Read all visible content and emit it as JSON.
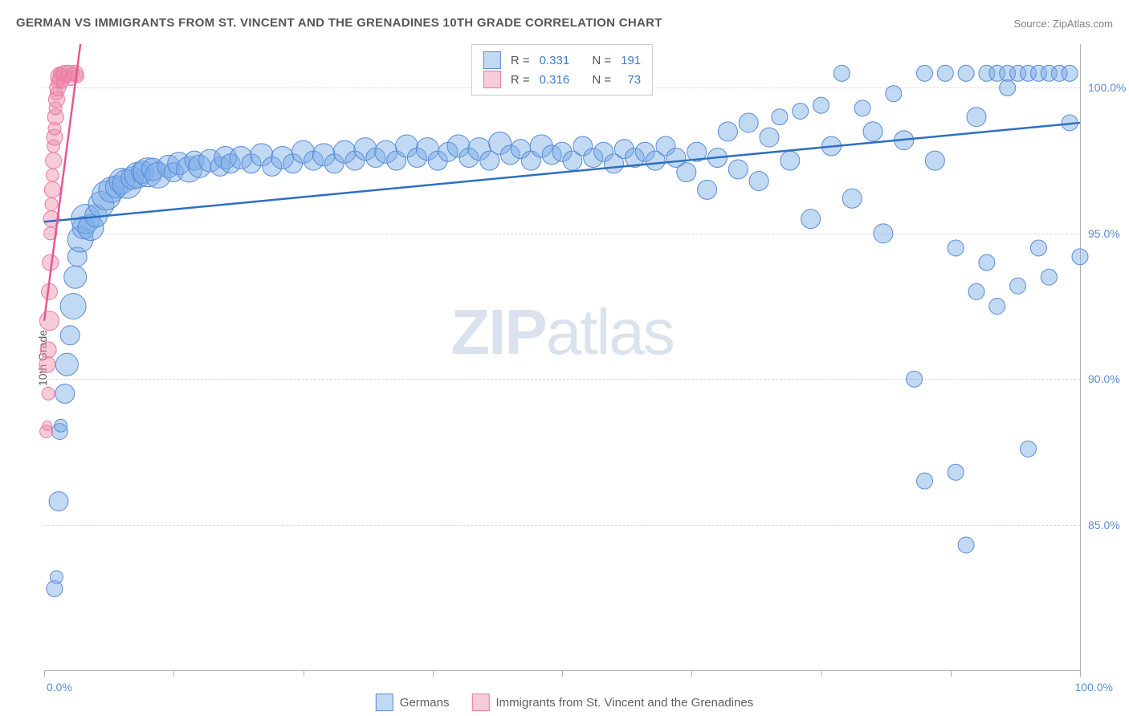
{
  "title": "GERMAN VS IMMIGRANTS FROM ST. VINCENT AND THE GRENADINES 10TH GRADE CORRELATION CHART",
  "source": "Source: ZipAtlas.com",
  "ylabel": "10th Grade",
  "watermark_zip": "ZIP",
  "watermark_atlas": "atlas",
  "chart": {
    "type": "scatter",
    "xlim": [
      0,
      100
    ],
    "ylim": [
      80,
      101.5
    ],
    "y_ticks": [
      85.0,
      90.0,
      95.0,
      100.0
    ],
    "y_tick_labels": [
      "85.0%",
      "90.0%",
      "95.0%",
      "100.0%"
    ],
    "x_ticks": [
      0,
      12.5,
      25,
      37.5,
      50,
      62.5,
      75,
      87.5,
      100
    ],
    "x_axis_label_left": "0.0%",
    "x_axis_label_right": "100.0%",
    "background_color": "#ffffff",
    "grid_color": "#d8d8d8",
    "axis_color": "#b0b0b0",
    "series": [
      {
        "name": "Germans",
        "color_fill": "rgba(120,170,230,0.45)",
        "color_stroke": "#5b8bd4",
        "trend_color": "#2e6fc0",
        "trend": {
          "x1": 0,
          "y1": 95.4,
          "x2": 100,
          "y2": 98.8
        },
        "R": "0.331",
        "N": "191",
        "points": [
          {
            "x": 1,
            "y": 82.8,
            "r": 10
          },
          {
            "x": 1.2,
            "y": 83.2,
            "r": 8
          },
          {
            "x": 1.4,
            "y": 85.8,
            "r": 12
          },
          {
            "x": 1.5,
            "y": 88.2,
            "r": 10
          },
          {
            "x": 1.6,
            "y": 88.4,
            "r": 8
          },
          {
            "x": 2,
            "y": 89.5,
            "r": 12
          },
          {
            "x": 2.2,
            "y": 90.5,
            "r": 14
          },
          {
            "x": 2.5,
            "y": 91.5,
            "r": 12
          },
          {
            "x": 2.8,
            "y": 92.5,
            "r": 16
          },
          {
            "x": 3,
            "y": 93.5,
            "r": 14
          },
          {
            "x": 3.2,
            "y": 94.2,
            "r": 12
          },
          {
            "x": 3.5,
            "y": 94.8,
            "r": 16
          },
          {
            "x": 3.8,
            "y": 95.2,
            "r": 14
          },
          {
            "x": 4,
            "y": 95.5,
            "r": 18
          },
          {
            "x": 4.5,
            "y": 95.2,
            "r": 16
          },
          {
            "x": 5,
            "y": 95.6,
            "r": 14
          },
          {
            "x": 5.5,
            "y": 96.0,
            "r": 16
          },
          {
            "x": 6,
            "y": 96.3,
            "r": 18
          },
          {
            "x": 6.5,
            "y": 96.5,
            "r": 16
          },
          {
            "x": 7,
            "y": 96.6,
            "r": 14
          },
          {
            "x": 7.5,
            "y": 96.8,
            "r": 16
          },
          {
            "x": 8,
            "y": 96.7,
            "r": 18
          },
          {
            "x": 8.5,
            "y": 96.9,
            "r": 14
          },
          {
            "x": 9,
            "y": 97.0,
            "r": 16
          },
          {
            "x": 9.5,
            "y": 97.1,
            "r": 14
          },
          {
            "x": 10,
            "y": 97.1,
            "r": 18
          },
          {
            "x": 10.5,
            "y": 97.2,
            "r": 14
          },
          {
            "x": 11,
            "y": 97.0,
            "r": 16
          },
          {
            "x": 12,
            "y": 97.3,
            "r": 14
          },
          {
            "x": 12.5,
            "y": 97.1,
            "r": 12
          },
          {
            "x": 13,
            "y": 97.4,
            "r": 14
          },
          {
            "x": 14,
            "y": 97.2,
            "r": 16
          },
          {
            "x": 14.5,
            "y": 97.5,
            "r": 12
          },
          {
            "x": 15,
            "y": 97.3,
            "r": 14
          },
          {
            "x": 16,
            "y": 97.5,
            "r": 14
          },
          {
            "x": 17,
            "y": 97.3,
            "r": 12
          },
          {
            "x": 17.5,
            "y": 97.6,
            "r": 14
          },
          {
            "x": 18,
            "y": 97.4,
            "r": 12
          },
          {
            "x": 19,
            "y": 97.6,
            "r": 14
          },
          {
            "x": 20,
            "y": 97.4,
            "r": 12
          },
          {
            "x": 21,
            "y": 97.7,
            "r": 14
          },
          {
            "x": 22,
            "y": 97.3,
            "r": 12
          },
          {
            "x": 23,
            "y": 97.6,
            "r": 14
          },
          {
            "x": 24,
            "y": 97.4,
            "r": 12
          },
          {
            "x": 25,
            "y": 97.8,
            "r": 14
          },
          {
            "x": 26,
            "y": 97.5,
            "r": 12
          },
          {
            "x": 27,
            "y": 97.7,
            "r": 14
          },
          {
            "x": 28,
            "y": 97.4,
            "r": 12
          },
          {
            "x": 29,
            "y": 97.8,
            "r": 14
          },
          {
            "x": 30,
            "y": 97.5,
            "r": 12
          },
          {
            "x": 31,
            "y": 97.9,
            "r": 14
          },
          {
            "x": 32,
            "y": 97.6,
            "r": 12
          },
          {
            "x": 33,
            "y": 97.8,
            "r": 14
          },
          {
            "x": 34,
            "y": 97.5,
            "r": 12
          },
          {
            "x": 35,
            "y": 98.0,
            "r": 14
          },
          {
            "x": 36,
            "y": 97.6,
            "r": 12
          },
          {
            "x": 37,
            "y": 97.9,
            "r": 14
          },
          {
            "x": 38,
            "y": 97.5,
            "r": 12
          },
          {
            "x": 39,
            "y": 97.8,
            "r": 12
          },
          {
            "x": 40,
            "y": 98.0,
            "r": 14
          },
          {
            "x": 41,
            "y": 97.6,
            "r": 12
          },
          {
            "x": 42,
            "y": 97.9,
            "r": 14
          },
          {
            "x": 43,
            "y": 97.5,
            "r": 12
          },
          {
            "x": 44,
            "y": 98.1,
            "r": 14
          },
          {
            "x": 45,
            "y": 97.7,
            "r": 12
          },
          {
            "x": 46,
            "y": 97.9,
            "r": 12
          },
          {
            "x": 47,
            "y": 97.5,
            "r": 12
          },
          {
            "x": 48,
            "y": 98.0,
            "r": 14
          },
          {
            "x": 49,
            "y": 97.7,
            "r": 12
          },
          {
            "x": 50,
            "y": 97.8,
            "r": 12
          },
          {
            "x": 51,
            "y": 97.5,
            "r": 12
          },
          {
            "x": 52,
            "y": 98.0,
            "r": 12
          },
          {
            "x": 53,
            "y": 97.6,
            "r": 12
          },
          {
            "x": 54,
            "y": 97.8,
            "r": 12
          },
          {
            "x": 55,
            "y": 97.4,
            "r": 12
          },
          {
            "x": 56,
            "y": 97.9,
            "r": 12
          },
          {
            "x": 57,
            "y": 97.6,
            "r": 12
          },
          {
            "x": 58,
            "y": 97.8,
            "r": 12
          },
          {
            "x": 59,
            "y": 97.5,
            "r": 12
          },
          {
            "x": 60,
            "y": 98.0,
            "r": 12
          },
          {
            "x": 61,
            "y": 97.6,
            "r": 12
          },
          {
            "x": 62,
            "y": 97.1,
            "r": 12
          },
          {
            "x": 63,
            "y": 97.8,
            "r": 12
          },
          {
            "x": 64,
            "y": 96.5,
            "r": 12
          },
          {
            "x": 65,
            "y": 97.6,
            "r": 12
          },
          {
            "x": 66,
            "y": 98.5,
            "r": 12
          },
          {
            "x": 67,
            "y": 97.2,
            "r": 12
          },
          {
            "x": 68,
            "y": 98.8,
            "r": 12
          },
          {
            "x": 69,
            "y": 96.8,
            "r": 12
          },
          {
            "x": 70,
            "y": 98.3,
            "r": 12
          },
          {
            "x": 71,
            "y": 99.0,
            "r": 10
          },
          {
            "x": 72,
            "y": 97.5,
            "r": 12
          },
          {
            "x": 73,
            "y": 99.2,
            "r": 10
          },
          {
            "x": 74,
            "y": 95.5,
            "r": 12
          },
          {
            "x": 75,
            "y": 99.4,
            "r": 10
          },
          {
            "x": 76,
            "y": 98.0,
            "r": 12
          },
          {
            "x": 77,
            "y": 100.5,
            "r": 10
          },
          {
            "x": 78,
            "y": 96.2,
            "r": 12
          },
          {
            "x": 79,
            "y": 99.3,
            "r": 10
          },
          {
            "x": 80,
            "y": 98.5,
            "r": 12
          },
          {
            "x": 81,
            "y": 95.0,
            "r": 12
          },
          {
            "x": 82,
            "y": 99.8,
            "r": 10
          },
          {
            "x": 83,
            "y": 98.2,
            "r": 12
          },
          {
            "x": 84,
            "y": 90.0,
            "r": 10
          },
          {
            "x": 85,
            "y": 100.5,
            "r": 10
          },
          {
            "x": 85,
            "y": 86.5,
            "r": 10
          },
          {
            "x": 86,
            "y": 97.5,
            "r": 12
          },
          {
            "x": 87,
            "y": 100.5,
            "r": 10
          },
          {
            "x": 88,
            "y": 94.5,
            "r": 10
          },
          {
            "x": 88,
            "y": 86.8,
            "r": 10
          },
          {
            "x": 89,
            "y": 100.5,
            "r": 10
          },
          {
            "x": 89,
            "y": 84.3,
            "r": 10
          },
          {
            "x": 90,
            "y": 99.0,
            "r": 12
          },
          {
            "x": 90,
            "y": 93.0,
            "r": 10
          },
          {
            "x": 91,
            "y": 100.5,
            "r": 10
          },
          {
            "x": 91,
            "y": 94.0,
            "r": 10
          },
          {
            "x": 92,
            "y": 100.5,
            "r": 10
          },
          {
            "x": 92,
            "y": 92.5,
            "r": 10
          },
          {
            "x": 93,
            "y": 100.5,
            "r": 10
          },
          {
            "x": 93,
            "y": 100.0,
            "r": 10
          },
          {
            "x": 94,
            "y": 100.5,
            "r": 10
          },
          {
            "x": 94,
            "y": 93.2,
            "r": 10
          },
          {
            "x": 95,
            "y": 100.5,
            "r": 10
          },
          {
            "x": 95,
            "y": 87.6,
            "r": 10
          },
          {
            "x": 96,
            "y": 100.5,
            "r": 10
          },
          {
            "x": 96,
            "y": 94.5,
            "r": 10
          },
          {
            "x": 97,
            "y": 100.5,
            "r": 10
          },
          {
            "x": 97,
            "y": 93.5,
            "r": 10
          },
          {
            "x": 98,
            "y": 100.5,
            "r": 10
          },
          {
            "x": 99,
            "y": 100.5,
            "r": 10
          },
          {
            "x": 99,
            "y": 98.8,
            "r": 10
          },
          {
            "x": 100,
            "y": 94.2,
            "r": 10
          }
        ]
      },
      {
        "name": "Immigrants from St. Vincent and the Grenadines",
        "color_fill": "rgba(240,140,170,0.45)",
        "color_stroke": "#e87ba3",
        "trend_color": "#e85691",
        "trend": {
          "x1": 0,
          "y1": 92.0,
          "x2": 3.5,
          "y2": 101.5
        },
        "R": "0.316",
        "N": "73",
        "points": [
          {
            "x": 0.2,
            "y": 88.2,
            "r": 8
          },
          {
            "x": 0.3,
            "y": 88.4,
            "r": 6
          },
          {
            "x": 0.3,
            "y": 90.5,
            "r": 10
          },
          {
            "x": 0.4,
            "y": 89.5,
            "r": 8
          },
          {
            "x": 0.4,
            "y": 91.0,
            "r": 10
          },
          {
            "x": 0.5,
            "y": 92.0,
            "r": 12
          },
          {
            "x": 0.5,
            "y": 93.0,
            "r": 10
          },
          {
            "x": 0.6,
            "y": 94.0,
            "r": 10
          },
          {
            "x": 0.6,
            "y": 95.0,
            "r": 8
          },
          {
            "x": 0.7,
            "y": 95.5,
            "r": 10
          },
          {
            "x": 0.7,
            "y": 96.0,
            "r": 8
          },
          {
            "x": 0.8,
            "y": 96.5,
            "r": 10
          },
          {
            "x": 0.8,
            "y": 97.0,
            "r": 8
          },
          {
            "x": 0.9,
            "y": 97.5,
            "r": 10
          },
          {
            "x": 0.9,
            "y": 98.0,
            "r": 8
          },
          {
            "x": 1.0,
            "y": 98.3,
            "r": 10
          },
          {
            "x": 1.0,
            "y": 98.6,
            "r": 8
          },
          {
            "x": 1.1,
            "y": 99.0,
            "r": 10
          },
          {
            "x": 1.1,
            "y": 99.3,
            "r": 8
          },
          {
            "x": 1.2,
            "y": 99.6,
            "r": 10
          },
          {
            "x": 1.2,
            "y": 99.8,
            "r": 8
          },
          {
            "x": 1.3,
            "y": 100.0,
            "r": 10
          },
          {
            "x": 1.3,
            "y": 100.2,
            "r": 8
          },
          {
            "x": 1.4,
            "y": 100.4,
            "r": 10
          },
          {
            "x": 1.5,
            "y": 100.5,
            "r": 8
          },
          {
            "x": 1.6,
            "y": 100.3,
            "r": 10
          },
          {
            "x": 1.7,
            "y": 100.5,
            "r": 8
          },
          {
            "x": 1.8,
            "y": 100.2,
            "r": 8
          },
          {
            "x": 2.0,
            "y": 100.5,
            "r": 10
          },
          {
            "x": 2.2,
            "y": 100.4,
            "r": 8
          },
          {
            "x": 2.4,
            "y": 100.5,
            "r": 10
          },
          {
            "x": 2.6,
            "y": 100.3,
            "r": 8
          },
          {
            "x": 2.8,
            "y": 100.5,
            "r": 8
          },
          {
            "x": 3.0,
            "y": 100.5,
            "r": 10
          },
          {
            "x": 3.2,
            "y": 100.4,
            "r": 8
          }
        ]
      }
    ]
  },
  "legend_top": {
    "r_label": "R =",
    "n_label": "N ="
  },
  "legend_bottom": {
    "a": "Germans",
    "b": "Immigrants from St. Vincent and the Grenadines"
  }
}
